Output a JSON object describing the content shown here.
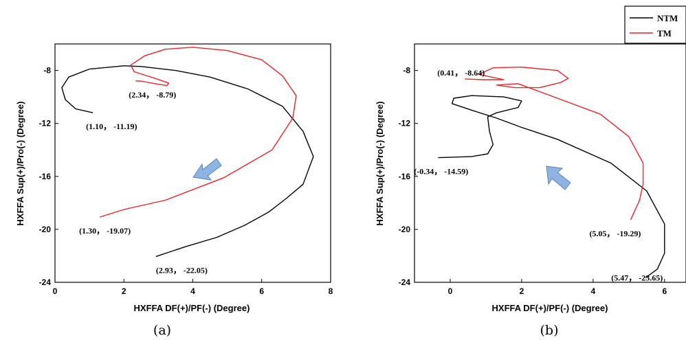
{
  "legend": [
    {
      "name": "NTM",
      "color": "#000000"
    },
    {
      "name": "TM",
      "color": "#e8232a"
    }
  ],
  "arrow_color": "#8eb4e3",
  "chart_data": [
    {
      "type": "line",
      "panel_label": "(a)",
      "xlabel": "HXFFA DF(+)/PF(-) (Degree)",
      "ylabel": "HXFFA Sup(+)/Pro(-) (Degree)",
      "xlim": [
        0,
        8
      ],
      "ylim": [
        -24,
        -6
      ],
      "xticks": [
        0,
        2,
        4,
        6,
        8
      ],
      "yticks": [
        -24,
        -20,
        -16,
        -12,
        -8
      ],
      "series": [
        {
          "name": "NTM",
          "color": "#000000",
          "points": [
            [
              2.93,
              -22.05
            ],
            [
              3.8,
              -21.3
            ],
            [
              4.7,
              -20.6
            ],
            [
              5.5,
              -19.7
            ],
            [
              6.2,
              -18.7
            ],
            [
              6.7,
              -17.7
            ],
            [
              7.2,
              -16.6
            ],
            [
              7.5,
              -14.5
            ],
            [
              7.2,
              -12.6
            ],
            [
              6.6,
              -10.7
            ],
            [
              5.6,
              -9.4
            ],
            [
              4.5,
              -8.5
            ],
            [
              3.5,
              -8.0
            ],
            [
              2.5,
              -7.7
            ],
            [
              2.0,
              -7.65
            ],
            [
              1.0,
              -7.9
            ],
            [
              0.4,
              -8.5
            ],
            [
              0.2,
              -9.3
            ],
            [
              0.3,
              -10.2
            ],
            [
              0.6,
              -10.9
            ],
            [
              1.1,
              -11.19
            ]
          ]
        },
        {
          "name": "TM",
          "color": "#e8232a",
          "points": [
            [
              1.3,
              -19.07
            ],
            [
              2.0,
              -18.5
            ],
            [
              3.2,
              -17.8
            ],
            [
              4.9,
              -16.1
            ],
            [
              6.3,
              -14.0
            ],
            [
              6.9,
              -11.6
            ],
            [
              7.0,
              -9.9
            ],
            [
              6.6,
              -8.4
            ],
            [
              6.0,
              -7.2
            ],
            [
              5.0,
              -6.5
            ],
            [
              4.0,
              -6.25
            ],
            [
              3.2,
              -6.4
            ],
            [
              2.6,
              -6.9
            ],
            [
              2.2,
              -7.6
            ],
            [
              2.3,
              -8.1
            ],
            [
              2.9,
              -8.6
            ],
            [
              3.3,
              -8.95
            ],
            [
              3.25,
              -9.15
            ],
            [
              2.8,
              -8.95
            ],
            [
              2.5,
              -8.8
            ],
            [
              2.34,
              -8.79
            ]
          ]
        }
      ],
      "annotations": [
        {
          "text": "(2.34， -8.79)",
          "x": 2.34,
          "y": -8.79
        },
        {
          "text": "(1.10， -11.19)",
          "x": 1.1,
          "y": -11.19
        },
        {
          "text": "(1.30， -19.07)",
          "x": 1.3,
          "y": -19.07
        },
        {
          "text": "(2.93， -22.05)",
          "x": 2.93,
          "y": -22.05
        }
      ]
    },
    {
      "type": "line",
      "panel_label": "(b)",
      "xlabel": "HXFFA DF(+)/PF(-) (Degree)",
      "ylabel": "HXFFA Sup(+)/Pro(-) (Degree)",
      "xlim": [
        -1,
        6.6
      ],
      "ylim": [
        -24,
        -6
      ],
      "xticks": [
        0,
        2,
        4,
        6
      ],
      "yticks": [
        -24,
        -20,
        -16,
        -12,
        -8
      ],
      "series": [
        {
          "name": "NTM",
          "color": "#000000",
          "points": [
            [
              5.47,
              -23.65
            ],
            [
              5.8,
              -23.0
            ],
            [
              6.0,
              -21.8
            ],
            [
              6.0,
              -19.6
            ],
            [
              5.5,
              -17.1
            ],
            [
              4.5,
              -15.0
            ],
            [
              3.0,
              -13.2
            ],
            [
              2.0,
              -12.3
            ],
            [
              1.3,
              -11.6
            ],
            [
              0.6,
              -11.0
            ],
            [
              0.05,
              -10.5
            ],
            [
              0.1,
              -10.1
            ],
            [
              0.6,
              -9.9
            ],
            [
              1.5,
              -10.0
            ],
            [
              2.0,
              -10.3
            ],
            [
              1.9,
              -10.8
            ],
            [
              1.3,
              -11.2
            ],
            [
              1.05,
              -11.5
            ],
            [
              1.1,
              -12.6
            ],
            [
              1.2,
              -13.6
            ],
            [
              1.05,
              -14.3
            ],
            [
              0.6,
              -14.5
            ],
            [
              -0.34,
              -14.59
            ]
          ]
        },
        {
          "name": "TM",
          "color": "#e8232a",
          "points": [
            [
              5.05,
              -19.29
            ],
            [
              5.3,
              -17.8
            ],
            [
              5.4,
              -16.6
            ],
            [
              5.4,
              -15.0
            ],
            [
              5.0,
              -13.0
            ],
            [
              4.2,
              -11.3
            ],
            [
              3.0,
              -10.1
            ],
            [
              1.9,
              -9.0
            ],
            [
              1.3,
              -9.1
            ],
            [
              1.8,
              -9.3
            ],
            [
              2.5,
              -9.3
            ],
            [
              3.1,
              -8.9
            ],
            [
              3.3,
              -8.6
            ],
            [
              3.0,
              -8.0
            ],
            [
              2.0,
              -7.75
            ],
            [
              1.2,
              -7.8
            ],
            [
              0.8,
              -8.3
            ],
            [
              1.5,
              -8.7
            ],
            [
              0.9,
              -8.7
            ],
            [
              0.41,
              -8.64
            ]
          ]
        }
      ],
      "annotations": [
        {
          "text": "(0.41， -8.64)",
          "x": 0.41,
          "y": -8.64
        },
        {
          "text": "(-0.34， -14.59)",
          "x": -0.34,
          "y": -14.59
        },
        {
          "text": "(5.05， -19.29)",
          "x": 5.05,
          "y": -19.29
        },
        {
          "text": "(5.47， -23.65)",
          "x": 5.47,
          "y": -23.65
        }
      ]
    }
  ]
}
